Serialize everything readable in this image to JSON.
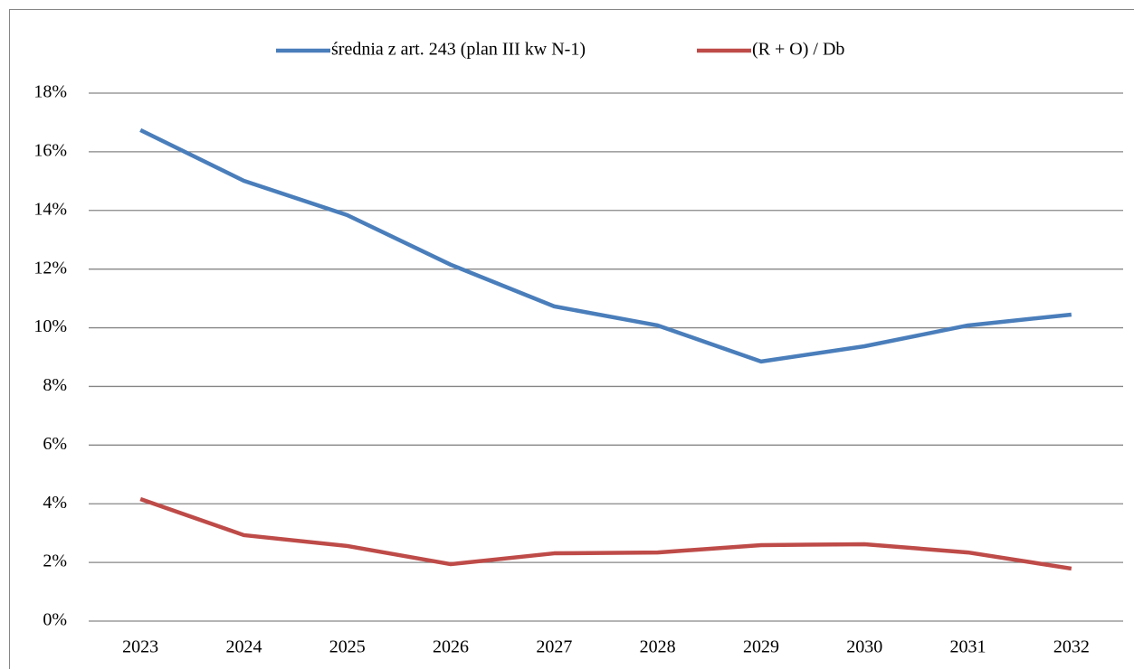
{
  "chart_data": {
    "type": "line",
    "categories": [
      "2023",
      "2024",
      "2025",
      "2026",
      "2027",
      "2028",
      "2029",
      "2030",
      "2031",
      "2032"
    ],
    "series": [
      {
        "name": "średnia z art. 243 (plan III kw N-1)",
        "color": "#4a7ebb",
        "values": [
          16.74,
          15.01,
          13.84,
          12.15,
          10.73,
          10.08,
          8.85,
          9.37,
          10.08,
          10.45
        ]
      },
      {
        "name": "(R + O) / Db",
        "color": "#be4b48",
        "values": [
          4.16,
          2.93,
          2.56,
          1.94,
          2.31,
          2.34,
          2.59,
          2.62,
          2.34,
          1.79
        ]
      }
    ],
    "ylim": [
      0,
      18
    ],
    "yticks": [
      {
        "value": 0,
        "label": "0%"
      },
      {
        "value": 2,
        "label": "2%"
      },
      {
        "value": 4,
        "label": "4%"
      },
      {
        "value": 6,
        "label": "6%"
      },
      {
        "value": 8,
        "label": "8%"
      },
      {
        "value": 10,
        "label": "10%"
      },
      {
        "value": 12,
        "label": "12%"
      },
      {
        "value": 14,
        "label": "14%"
      },
      {
        "value": 16,
        "label": "16%"
      },
      {
        "value": 18,
        "label": "18%"
      }
    ],
    "grid": true,
    "legend": "top"
  }
}
